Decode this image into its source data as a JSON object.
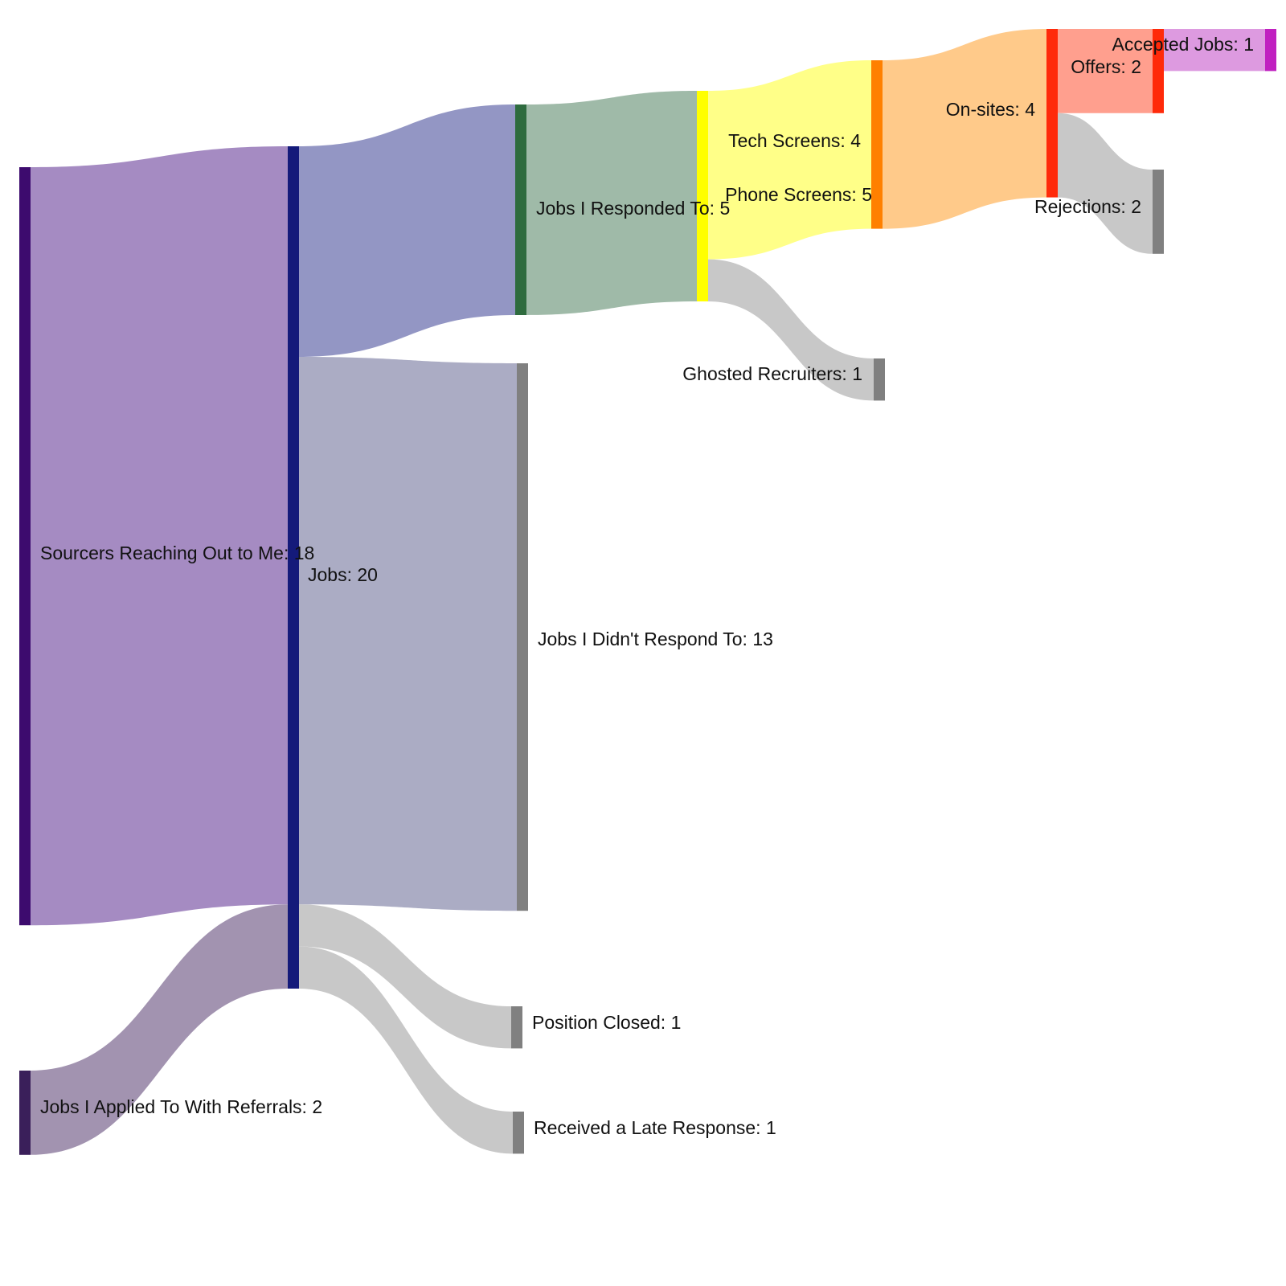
{
  "chart_data": {
    "type": "sankey",
    "nodes": [
      {
        "id": "sourcers",
        "label": "Sourcers Reaching Out to Me: 18",
        "value": 18,
        "color": "#3d0b6e"
      },
      {
        "id": "referrals",
        "label": "Jobs I Applied To With Referrals: 2",
        "value": 2,
        "color": "#3a1f5a"
      },
      {
        "id": "jobs",
        "label": "Jobs: 20",
        "value": 20,
        "color": "#141a7a"
      },
      {
        "id": "responded",
        "label": "Jobs I Responded To: 5",
        "value": 5,
        "color": "#2e6b3e"
      },
      {
        "id": "not_responded",
        "label": "Jobs I Didn't Respond To: 13",
        "value": 13,
        "color": "#808080"
      },
      {
        "id": "position_closed",
        "label": "Position Closed: 1",
        "value": 1,
        "color": "#808080"
      },
      {
        "id": "late_response",
        "label": "Received a Late Response: 1",
        "value": 1,
        "color": "#808080"
      },
      {
        "id": "phone_screens",
        "label": "Phone Screens: 5",
        "value": 5,
        "color": "#ffff00"
      },
      {
        "id": "tech_screens",
        "label": "Tech Screens: 4",
        "value": 4,
        "color": "#ff8000"
      },
      {
        "id": "ghosted",
        "label": "Ghosted Recruiters: 1",
        "value": 1,
        "color": "#808080"
      },
      {
        "id": "onsites",
        "label": "On-sites: 4",
        "value": 4,
        "color": "#ff2a0a"
      },
      {
        "id": "offers",
        "label": "Offers: 2",
        "value": 2,
        "color": "#ff2a0a"
      },
      {
        "id": "rejections",
        "label": "Rejections: 2",
        "value": 2,
        "color": "#808080"
      },
      {
        "id": "accepted",
        "label": "Accepted Jobs: 1",
        "value": 1,
        "color": "#c020c0"
      }
    ],
    "links": [
      {
        "source": "sourcers",
        "target": "jobs",
        "value": 18,
        "color": "#a58bc2"
      },
      {
        "source": "referrals",
        "target": "jobs",
        "value": 2,
        "color": "#a293b0"
      },
      {
        "source": "jobs",
        "target": "responded",
        "value": 5,
        "color": "#9396c4"
      },
      {
        "source": "jobs",
        "target": "not_responded",
        "value": 13,
        "color": "#abacc4"
      },
      {
        "source": "jobs",
        "target": "position_closed",
        "value": 1,
        "color": "#c8c8c8"
      },
      {
        "source": "jobs",
        "target": "late_response",
        "value": 1,
        "color": "#c8c8c8"
      },
      {
        "source": "responded",
        "target": "phone_screens",
        "value": 5,
        "color": "#9fbaa8"
      },
      {
        "source": "phone_screens",
        "target": "tech_screens",
        "value": 4,
        "color": "#ffff88"
      },
      {
        "source": "phone_screens",
        "target": "ghosted",
        "value": 1,
        "color": "#c8c8c8"
      },
      {
        "source": "tech_screens",
        "target": "onsites",
        "value": 4,
        "color": "#ffca8a"
      },
      {
        "source": "onsites",
        "target": "offers",
        "value": 2,
        "color": "#ff9f8e"
      },
      {
        "source": "onsites",
        "target": "rejections",
        "value": 2,
        "color": "#c8c8c8"
      },
      {
        "source": "offers",
        "target": "accepted",
        "value": 1,
        "color": "#dd9ae0"
      }
    ]
  }
}
